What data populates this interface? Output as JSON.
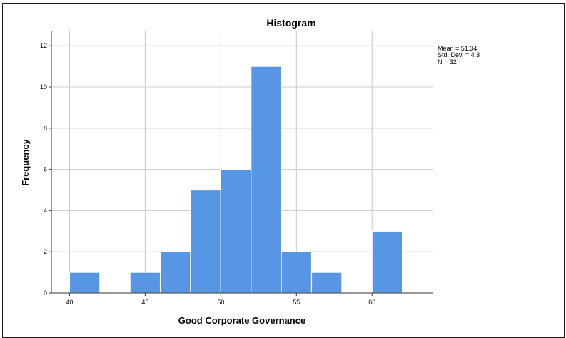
{
  "chart_data": {
    "type": "bar",
    "title": "Histogram",
    "xlabel": "Good Corporate Governance",
    "ylabel": "Frequency",
    "bin_width": 2,
    "bins": [
      {
        "start": 40,
        "end": 42,
        "value": 1
      },
      {
        "start": 42,
        "end": 44,
        "value": 0
      },
      {
        "start": 44,
        "end": 46,
        "value": 1
      },
      {
        "start": 46,
        "end": 48,
        "value": 2
      },
      {
        "start": 48,
        "end": 50,
        "value": 5
      },
      {
        "start": 50,
        "end": 52,
        "value": 6
      },
      {
        "start": 52,
        "end": 54,
        "value": 11
      },
      {
        "start": 54,
        "end": 56,
        "value": 2
      },
      {
        "start": 56,
        "end": 58,
        "value": 1
      },
      {
        "start": 58,
        "end": 60,
        "value": 0
      },
      {
        "start": 60,
        "end": 62,
        "value": 3
      }
    ],
    "x_ticks": [
      40,
      45,
      50,
      55,
      60
    ],
    "y_ticks": [
      0,
      2,
      4,
      6,
      8,
      10,
      12
    ],
    "xlim": [
      38.8,
      64.0
    ],
    "ylim": [
      0,
      12.7
    ],
    "grid": true,
    "bar_color": "#5796e4",
    "bar_edge_color": "#ffffff",
    "grid_color": "#c8c8c8",
    "stats": {
      "mean": "Mean = 51.34",
      "std_dev": "Std. Dev. = 4.3",
      "n": "N = 32"
    }
  }
}
